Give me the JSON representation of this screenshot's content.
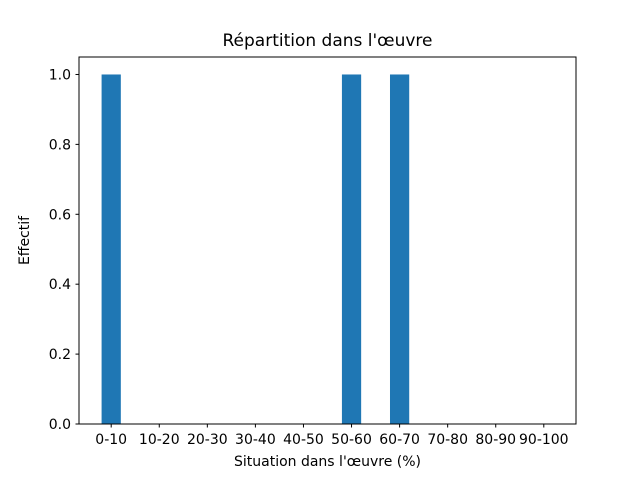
{
  "figure": {
    "background": "#ffffff",
    "frame_color": "#000000"
  },
  "chart_data": {
    "type": "bar",
    "title": "Répartition dans l'œuvre",
    "xlabel": "Situation dans l'œuvre (%)",
    "ylabel": "Effectif",
    "categories": [
      "0-10",
      "10-20",
      "20-30",
      "30-40",
      "40-50",
      "50-60",
      "60-70",
      "70-80",
      "80-90",
      "90-100"
    ],
    "values": [
      1,
      0,
      0,
      0,
      0,
      1,
      1,
      0,
      0,
      0
    ],
    "bar_color": "#1f77b4",
    "bar_width": 0.4,
    "ytick_labels": [
      "0.0",
      "0.2",
      "0.4",
      "0.6",
      "0.8",
      "1.0"
    ],
    "ytick_values": [
      0,
      0.2,
      0.4,
      0.6,
      0.8,
      1.0
    ],
    "ylim": [
      0,
      1.05
    ],
    "xlim": [
      -0.67,
      9.67
    ],
    "grid": false,
    "legend": "none"
  }
}
